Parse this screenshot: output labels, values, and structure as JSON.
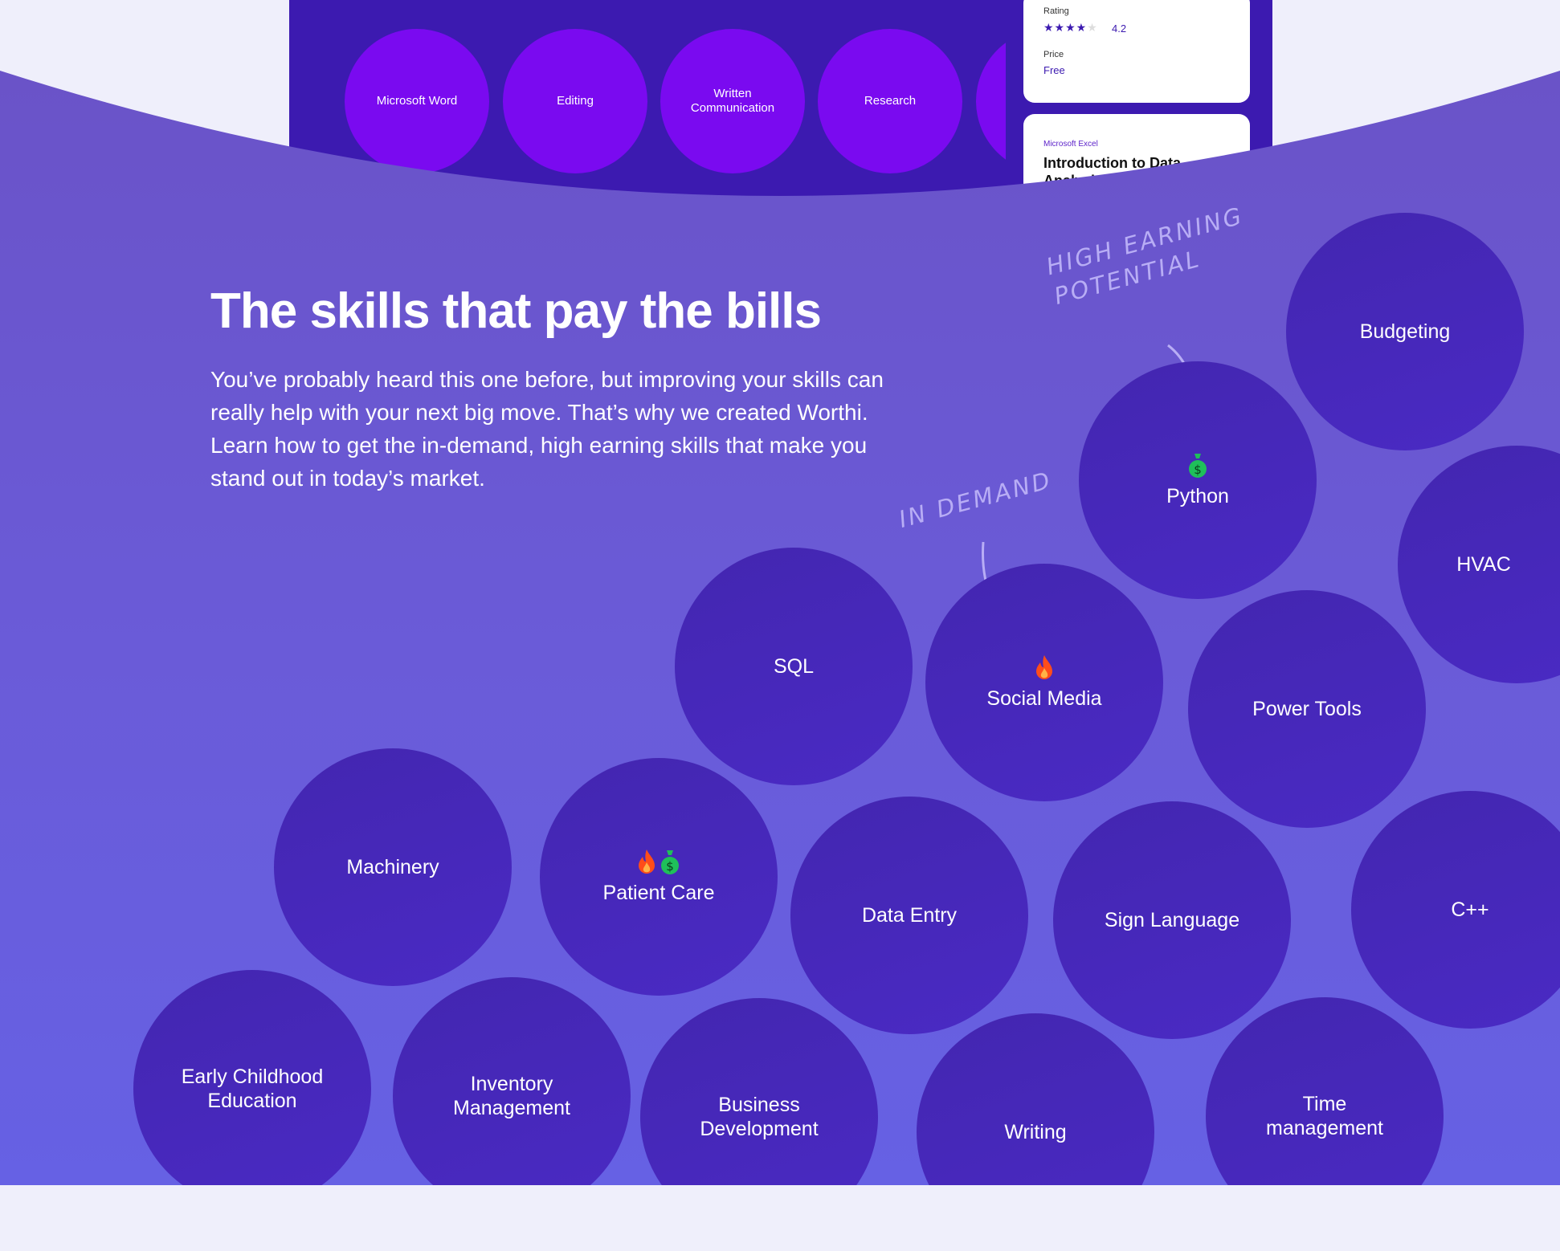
{
  "phone_preview": {
    "skills": [
      "Microsoft Word",
      "Editing",
      "Written Communication",
      "Research"
    ],
    "course_card": {
      "rating_label": "Rating",
      "rating_value": "4.2",
      "stars": "4 of 5",
      "price_label": "Price",
      "price_value": "Free"
    },
    "course_card2": {
      "category": "Microsoft Excel",
      "title": "Introduction to Data Analysis"
    }
  },
  "hero": {
    "title": "The skills that pay the bills",
    "description": "You’ve probably heard this one before, but improving your skills can really help with your next big move. That’s why we created Worthi. Learn how to get the in-demand, high earning skills that make you stand out in today’s market."
  },
  "annotations": {
    "high_earning": "HIGH EARNING POTENTIAL",
    "in_demand": "IN DEMAND"
  },
  "skills": [
    {
      "label": "Budgeting",
      "icons": []
    },
    {
      "label": "Python",
      "icons": [
        "money-bag-icon"
      ]
    },
    {
      "label": "HVAC",
      "icons": []
    },
    {
      "label": "SQL",
      "icons": []
    },
    {
      "label": "Social Media",
      "icons": [
        "fire-icon"
      ]
    },
    {
      "label": "Power Tools",
      "icons": []
    },
    {
      "label": "Machinery",
      "icons": []
    },
    {
      "label": "Patient Care",
      "icons": [
        "fire-icon",
        "money-bag-icon"
      ]
    },
    {
      "label": "Data Entry",
      "icons": []
    },
    {
      "label": "Sign Language",
      "icons": []
    },
    {
      "label": "C++",
      "icons": []
    },
    {
      "label": "Early Childhood Education",
      "icons": []
    },
    {
      "label": "Inventory Management",
      "icons": []
    },
    {
      "label": "Business Development",
      "icons": []
    },
    {
      "label": "Writing",
      "icons": []
    },
    {
      "label": "Time management",
      "icons": []
    }
  ],
  "colors": {
    "accent": "#6a52c6",
    "bubble": "#4326b0",
    "fire": "#ff4d1a",
    "money": "#1fbf5a"
  }
}
